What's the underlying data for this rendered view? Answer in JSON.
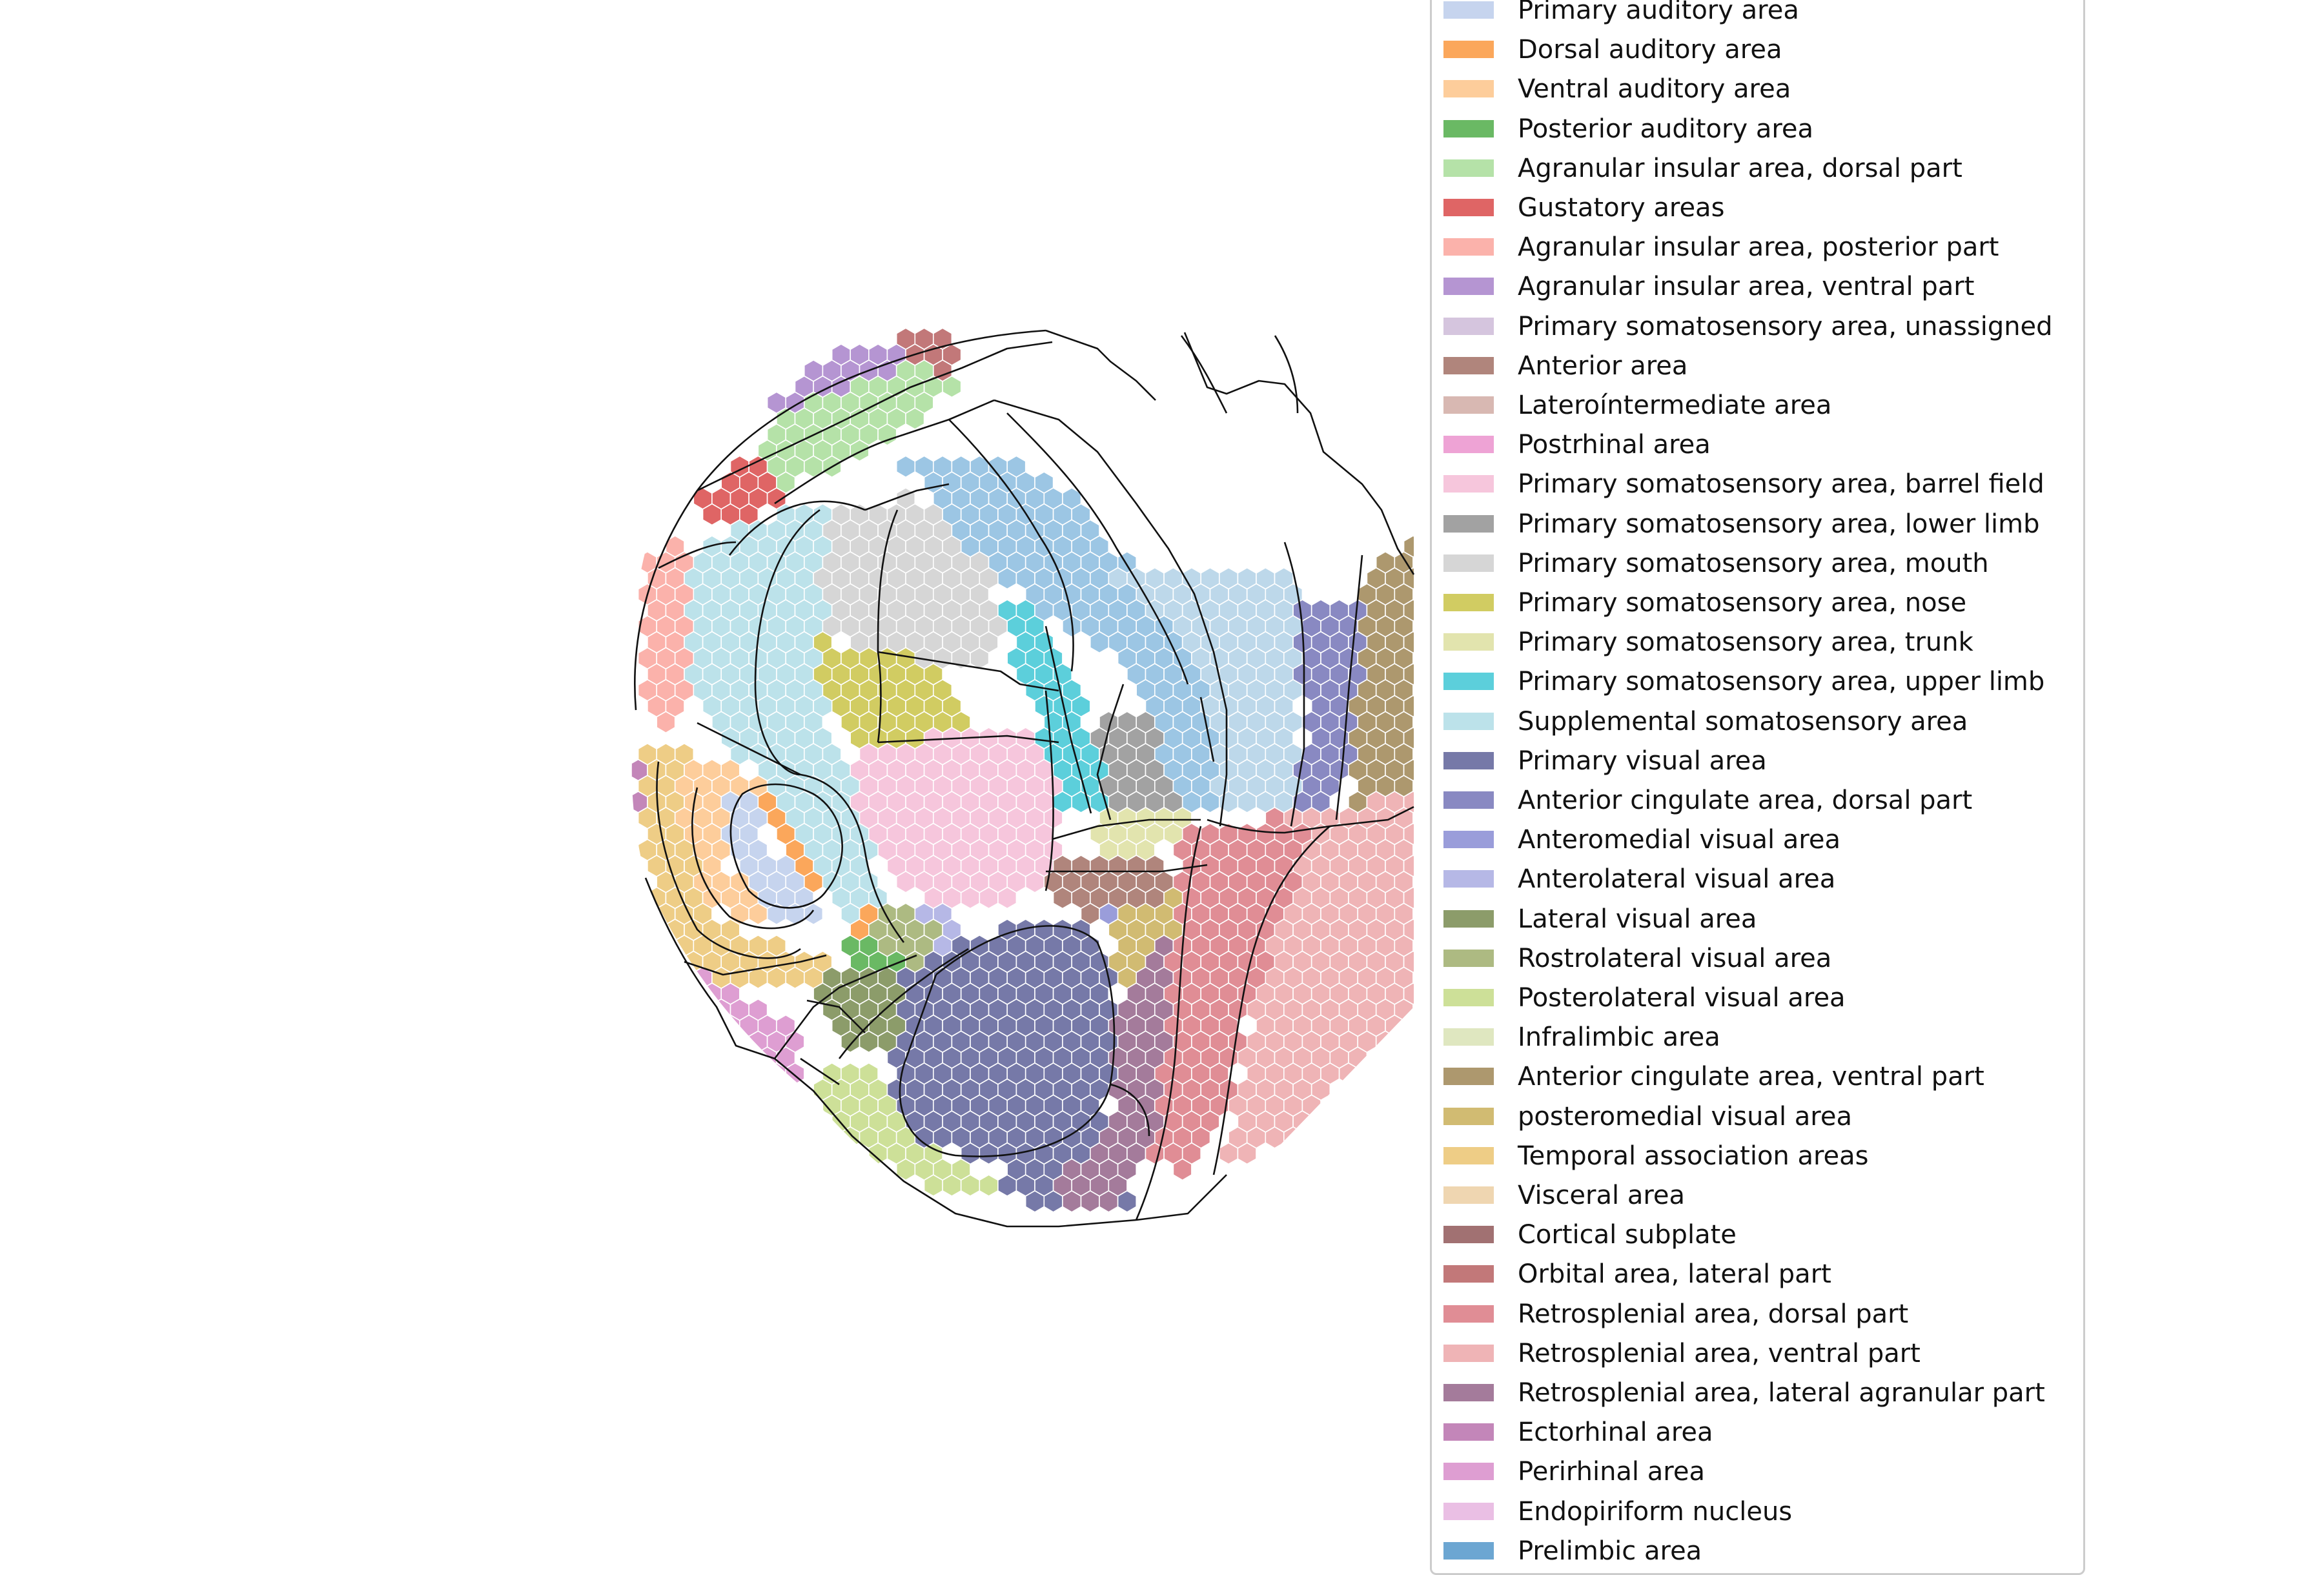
{
  "legend": {
    "items": [
      {
        "label": "Primary auditory area",
        "color": "#c6d4ee"
      },
      {
        "label": "Dorsal auditory area",
        "color": "#fba75b"
      },
      {
        "label": "Ventral auditory area",
        "color": "#fdcd9b"
      },
      {
        "label": "Posterior auditory area",
        "color": "#6ab964"
      },
      {
        "label": "Agranular insular area, dorsal part",
        "color": "#b5e2a8"
      },
      {
        "label": "Gustatory areas",
        "color": "#df6565"
      },
      {
        "label": "Agranular insular area, posterior part",
        "color": "#fbb2ab"
      },
      {
        "label": "Agranular insular area, ventral part",
        "color": "#b595d2"
      },
      {
        "label": "Primary somatosensory area, unassigned",
        "color": "#d5c5de"
      },
      {
        "label": "Anterior area",
        "color": "#b0857c"
      },
      {
        "label": "Lateroíntermediate area",
        "color": "#d8b8b2"
      },
      {
        "label": "Postrhinal area",
        "color": "#eea3d5"
      },
      {
        "label": "Primary somatosensory area, barrel field",
        "color": "#f6c6dc"
      },
      {
        "label": "Primary somatosensory area, lower limb",
        "color": "#a2a2a2"
      },
      {
        "label": "Primary somatosensory area, mouth",
        "color": "#d6d6d6"
      },
      {
        "label": "Primary somatosensory area, nose",
        "color": "#d1cc62"
      },
      {
        "label": "Primary somatosensory area, trunk",
        "color": "#e2e4ae"
      },
      {
        "label": "Primary somatosensory area, upper limb",
        "color": "#5ccfdb"
      },
      {
        "label": "Supplemental somatosensory area",
        "color": "#bce2ea"
      },
      {
        "label": "Primary visual area",
        "color": "#7679a8"
      },
      {
        "label": "Anterior cingulate area, dorsal part",
        "color": "#8989c2"
      },
      {
        "label": "Anteromedial visual area",
        "color": "#9a9dda"
      },
      {
        "label": "Anterolateral visual area",
        "color": "#b6b8e6"
      },
      {
        "label": "Lateral visual area",
        "color": "#8c9c6a"
      },
      {
        "label": "Rostrolateral visual area",
        "color": "#adba82"
      },
      {
        "label": "Posterolateral visual area",
        "color": "#cde098"
      },
      {
        "label": "Infralimbic area",
        "color": "#dfe7c0"
      },
      {
        "label": "Anterior cingulate area, ventral part",
        "color": "#ad986e"
      },
      {
        "label": "posteromedial visual area",
        "color": "#d1bb72"
      },
      {
        "label": "Temporal association areas",
        "color": "#eecd86"
      },
      {
        "label": "Visceral area",
        "color": "#efd6b1"
      },
      {
        "label": "Cortical subplate",
        "color": "#a17172"
      },
      {
        "label": "Orbital area, lateral part",
        "color": "#c27879"
      },
      {
        "label": "Retrosplenial area, dorsal part",
        "color": "#e08d95"
      },
      {
        "label": "Retrosplenial area, ventral part",
        "color": "#efb4b6"
      },
      {
        "label": "Retrosplenial area, lateral agranular part",
        "color": "#a47b9b"
      },
      {
        "label": "Ectorhinal area",
        "color": "#c386b9"
      },
      {
        "label": "Perirhinal area",
        "color": "#de9ed2"
      },
      {
        "label": "Endopiriform nucleus",
        "color": "#eabfe4"
      },
      {
        "label": "Prelimbic area",
        "color": "#6ca6d2"
      }
    ]
  },
  "map": {
    "region_colors": {
      "orange": "#fba75b",
      "lightorange": "#fdcd9b",
      "green": "#6ab964",
      "lightgreen": "#b5e2a8",
      "red": "#df6565",
      "pink": "#fbb2ab",
      "purple": "#b595d2",
      "brown": "#b0857c",
      "barrel": "#f6c6dc",
      "grey": "#a2a2a2",
      "mouth": "#d6d6d6",
      "nose": "#d1cc62",
      "trunk": "#e2e4ae",
      "upperlimb": "#5ccfdb",
      "supp": "#bce2ea",
      "v1": "#7679a8",
      "acad": "#8989c2",
      "am": "#9a9dda",
      "al": "#b6b8e6",
      "lv": "#8c9c6a",
      "rl": "#adba82",
      "pl": "#cde098",
      "acav": "#ad986e",
      "pm": "#d1bb72",
      "tea": "#eecd86",
      "orb": "#c27879",
      "rsd": "#e08d95",
      "rsv": "#efb4b6",
      "rsagl": "#a47b9b",
      "ect": "#c386b9",
      "peri": "#de9ed2",
      "prelimbic": "#6ca6d2",
      "blueish": "#9cc6e4",
      "lightblue": "#bdd8ea",
      "aud": "#c6d4ee"
    }
  }
}
